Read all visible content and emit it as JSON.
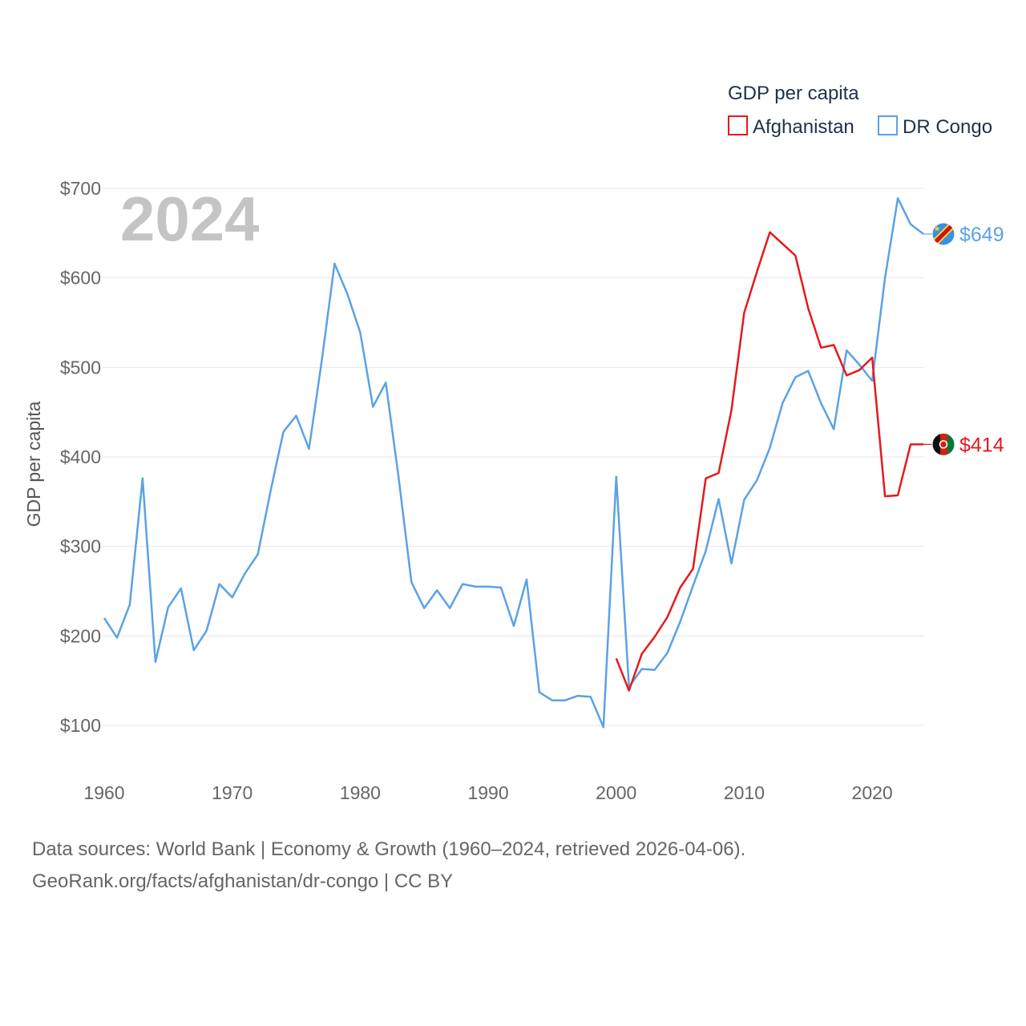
{
  "chart_data": {
    "type": "line",
    "year_watermark": "2024",
    "ylabel": "GDP per capita",
    "legend": {
      "title": "GDP per capita",
      "position": "top-right"
    },
    "xlim": [
      1960,
      2024
    ],
    "ylim": [
      40,
      720
    ],
    "x_ticks": [
      1960,
      1970,
      1980,
      1990,
      2000,
      2010,
      2020
    ],
    "y_ticks": [
      {
        "value": 100,
        "label": "$100"
      },
      {
        "value": 200,
        "label": "$200"
      },
      {
        "value": 300,
        "label": "$300"
      },
      {
        "value": 400,
        "label": "$400"
      },
      {
        "value": 500,
        "label": "$500"
      },
      {
        "value": 600,
        "label": "$600"
      },
      {
        "value": 700,
        "label": "$700"
      }
    ],
    "series": [
      {
        "name": "Afghanistan",
        "color": "#e41a1c",
        "end_label": "$414",
        "flag": "afghanistan-flag",
        "x": [
          2000,
          2001,
          2002,
          2003,
          2004,
          2005,
          2006,
          2007,
          2008,
          2009,
          2010,
          2011,
          2012,
          2013,
          2014,
          2015,
          2016,
          2017,
          2018,
          2019,
          2020,
          2021,
          2022,
          2023,
          2024
        ],
        "values": [
          175,
          139,
          180,
          199,
          221,
          254,
          275,
          376,
          382,
          452,
          561,
          607,
          651,
          638,
          625,
          566,
          522,
          525,
          491,
          497,
          511,
          356,
          357,
          414,
          414
        ]
      },
      {
        "name": "DR Congo",
        "color": "#5aa2e6",
        "end_label": "$649",
        "flag": "dr-congo-flag",
        "x": [
          1960,
          1961,
          1962,
          1963,
          1964,
          1965,
          1966,
          1967,
          1968,
          1969,
          1970,
          1971,
          1972,
          1973,
          1974,
          1975,
          1976,
          1977,
          1978,
          1979,
          1980,
          1981,
          1982,
          1983,
          1984,
          1985,
          1986,
          1987,
          1988,
          1989,
          1990,
          1991,
          1992,
          1993,
          1994,
          1995,
          1996,
          1997,
          1998,
          1999,
          2000,
          2001,
          2002,
          2003,
          2004,
          2005,
          2006,
          2007,
          2008,
          2009,
          2010,
          2011,
          2012,
          2013,
          2014,
          2015,
          2016,
          2017,
          2018,
          2019,
          2020,
          2021,
          2022,
          2023,
          2024
        ],
        "values": [
          220,
          198,
          235,
          376,
          171,
          232,
          253,
          184,
          206,
          258,
          243,
          270,
          291,
          362,
          428,
          446,
          409,
          508,
          616,
          582,
          539,
          456,
          483,
          377,
          260,
          231,
          251,
          231,
          258,
          255,
          255,
          254,
          211,
          263,
          137,
          128,
          128,
          133,
          132,
          98,
          378,
          143,
          163,
          162,
          181,
          216,
          256,
          295,
          353,
          281,
          352,
          374,
          410,
          460,
          489,
          496,
          460,
          431,
          519,
          503,
          485,
          600,
          689,
          660,
          649
        ]
      }
    ]
  },
  "source": {
    "line1": "Data sources: World Bank | Economy & Growth (1960–2024, retrieved 2026-04-06).",
    "line2": "GeoRank.org/facts/afghanistan/dr-congo | CC BY"
  }
}
